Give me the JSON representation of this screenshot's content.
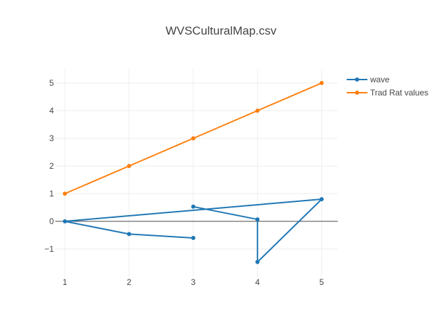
{
  "chart_data": {
    "type": "line",
    "title": "WVSCulturalMap.csv",
    "xlim": [
      0.85,
      5.25
    ],
    "ylim": [
      -2.0,
      5.5
    ],
    "x_ticks": [
      "1",
      "2",
      "3",
      "4",
      "5"
    ],
    "y_ticks": [
      "5",
      "4",
      "3",
      "2",
      "1",
      "0",
      "−1"
    ],
    "grid": true,
    "legend_position": "top-right",
    "series": [
      {
        "name": "wave",
        "color": "#1f77b4",
        "points": [
          {
            "x": 3,
            "y": 0.53
          },
          {
            "x": 4,
            "y": 0.07
          },
          {
            "x": 4,
            "y": -1.47
          },
          {
            "x": 5,
            "y": 0.8
          },
          {
            "x": 1,
            "y": 0.0
          },
          {
            "x": 2,
            "y": -0.46
          },
          {
            "x": 3,
            "y": -0.6
          }
        ]
      },
      {
        "name": "Trad Rat values",
        "color": "#ff7f0e",
        "points": [
          {
            "x": 1,
            "y": 1
          },
          {
            "x": 2,
            "y": 2
          },
          {
            "x": 3,
            "y": 3
          },
          {
            "x": 4,
            "y": 4
          },
          {
            "x": 5,
            "y": 5
          }
        ]
      }
    ]
  }
}
